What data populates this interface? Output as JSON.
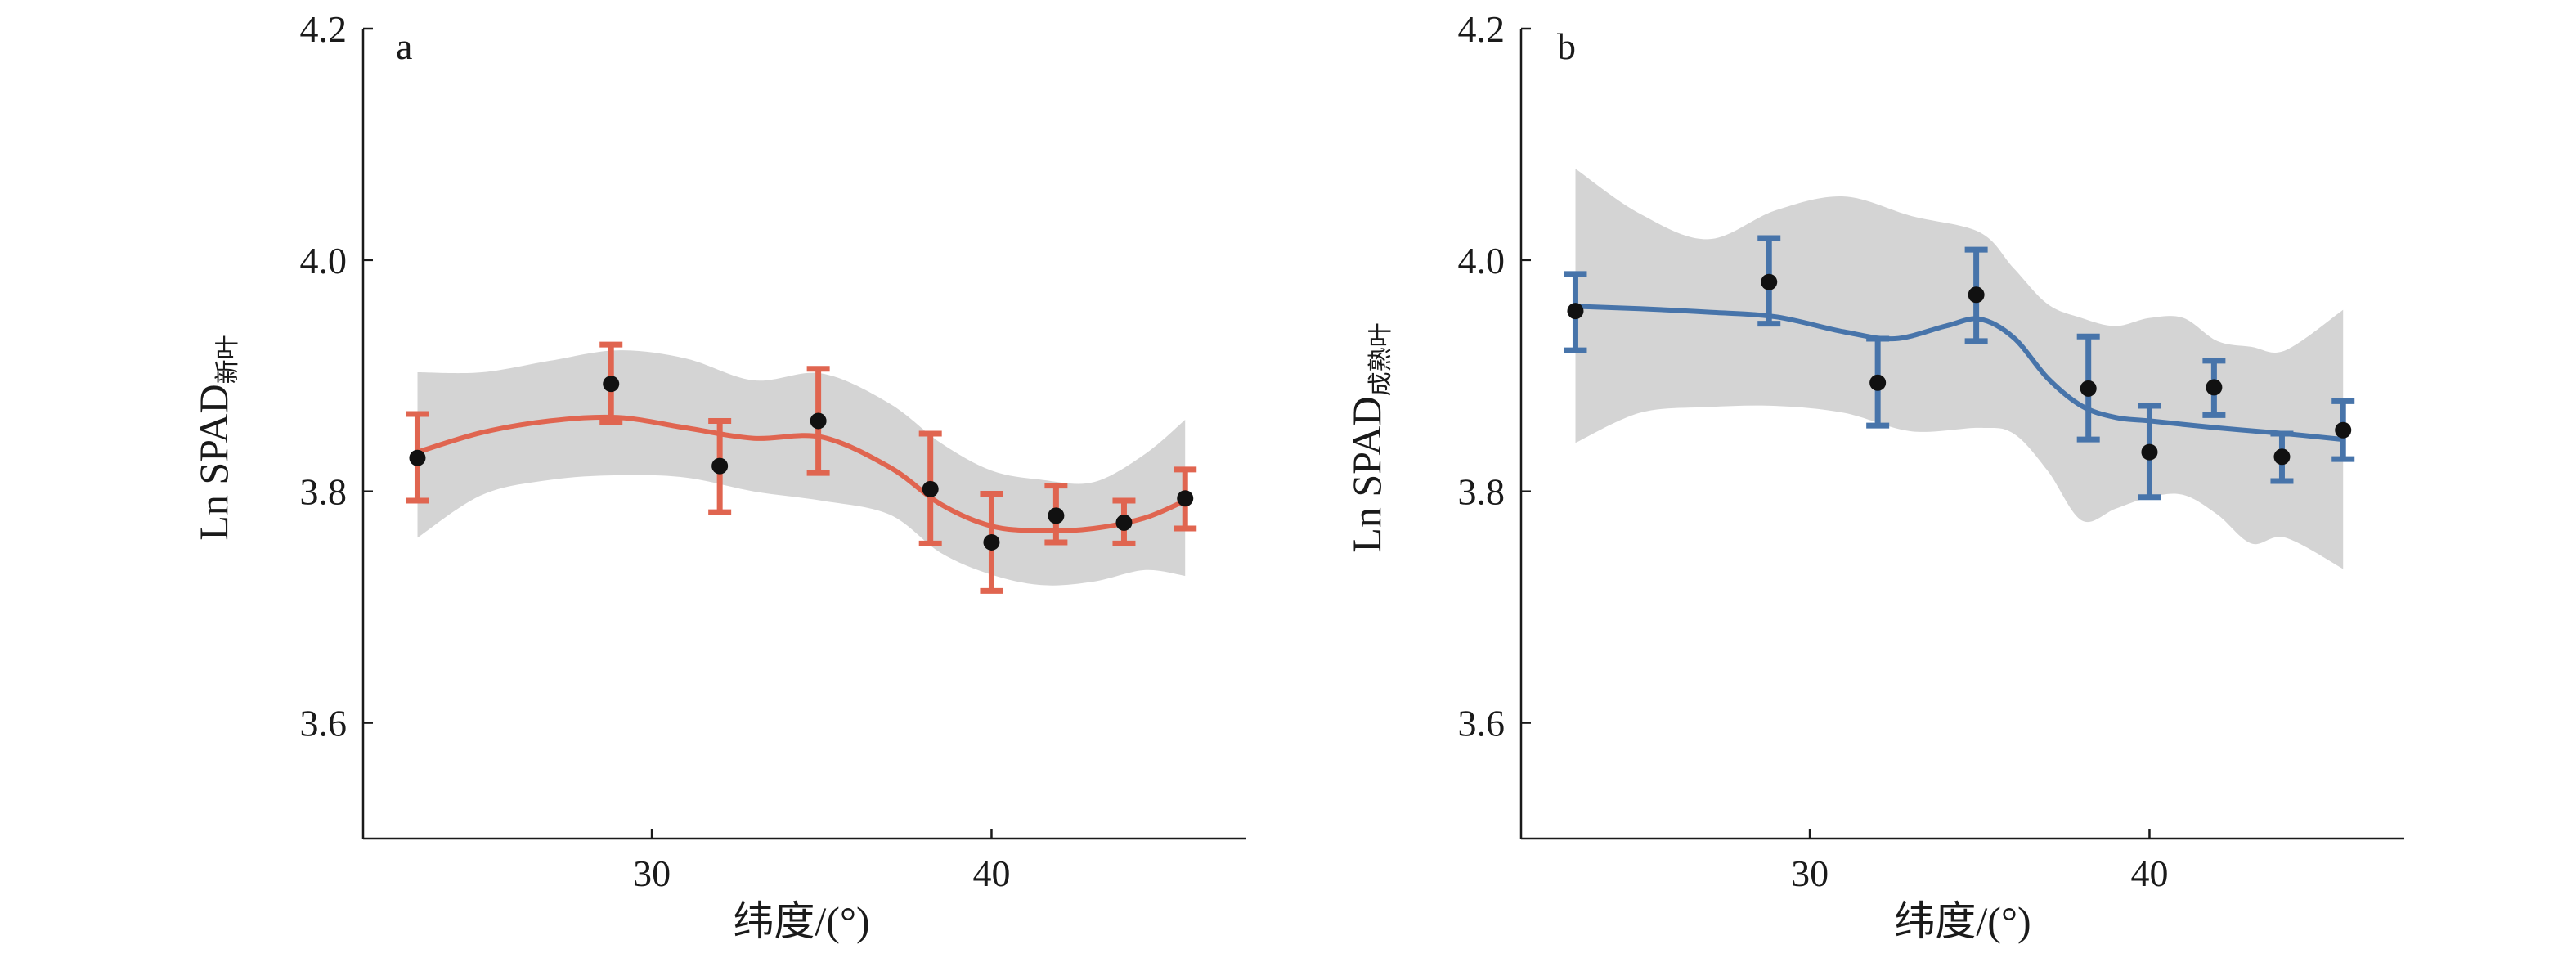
{
  "colors": {
    "panel_a": "#e06550",
    "panel_b": "#4774aa",
    "band": "#d4d4d4",
    "points": "#111111"
  },
  "chart_data": [
    {
      "type": "scatter",
      "panel_label": "a",
      "xlabel": "纬度/(°)",
      "ylabel_main": "Ln SPAD",
      "ylabel_sub": "新叶",
      "xlim": [
        21.5,
        47.5
      ],
      "ylim": [
        3.5,
        4.2
      ],
      "xticks": [
        30,
        40
      ],
      "yticks": [
        3.6,
        3.8,
        4.0,
        4.2
      ],
      "ytick_labels": [
        "3.6",
        "3.8",
        "4.0",
        "4.2"
      ],
      "xtick_labels": [
        "30",
        "40"
      ],
      "points": {
        "x": [
          23.1,
          28.8,
          32.0,
          34.9,
          38.2,
          40.0,
          41.9,
          43.9,
          45.7
        ],
        "y": [
          3.829,
          3.893,
          3.822,
          3.861,
          3.802,
          3.756,
          3.779,
          3.773,
          3.794
        ],
        "err_low": [
          3.792,
          3.86,
          3.782,
          3.816,
          3.755,
          3.714,
          3.756,
          3.755,
          3.768
        ],
        "err_high": [
          3.867,
          3.927,
          3.861,
          3.906,
          3.85,
          3.798,
          3.805,
          3.792,
          3.819
        ]
      },
      "fit": {
        "x": [
          23.1,
          25,
          27,
          29,
          31,
          33,
          35,
          37,
          38.5,
          40,
          41.5,
          43,
          44.5,
          45.7
        ],
        "y": [
          3.834,
          3.851,
          3.861,
          3.864,
          3.855,
          3.846,
          3.847,
          3.821,
          3.789,
          3.77,
          3.766,
          3.768,
          3.777,
          3.792
        ]
      },
      "band": {
        "x": [
          23.1,
          25,
          27,
          29,
          31,
          33,
          35,
          37,
          38.5,
          40,
          41.5,
          43,
          44.5,
          45.7
        ],
        "upper": [
          3.903,
          3.903,
          3.913,
          3.922,
          3.915,
          3.896,
          3.902,
          3.876,
          3.842,
          3.818,
          3.81,
          3.808,
          3.832,
          3.862
        ],
        "lower": [
          3.76,
          3.797,
          3.81,
          3.814,
          3.812,
          3.8,
          3.792,
          3.78,
          3.747,
          3.728,
          3.719,
          3.722,
          3.732,
          3.727
        ]
      }
    },
    {
      "type": "scatter",
      "panel_label": "b",
      "xlabel": "纬度/(°)",
      "ylabel_main": "Ln SPAD",
      "ylabel_sub": "成熟叶",
      "xlim": [
        21.5,
        47.5
      ],
      "ylim": [
        3.5,
        4.2
      ],
      "xticks": [
        30,
        40
      ],
      "yticks": [
        3.6,
        3.8,
        4.0,
        4.2
      ],
      "ytick_labels": [
        "3.6",
        "3.8",
        "4.0",
        "4.2"
      ],
      "xtick_labels": [
        "30",
        "40"
      ],
      "points": {
        "x": [
          23.1,
          28.8,
          32.0,
          34.9,
          38.2,
          40.0,
          41.9,
          43.9,
          45.7
        ],
        "y": [
          3.956,
          3.981,
          3.894,
          3.97,
          3.889,
          3.834,
          3.89,
          3.83,
          3.853
        ],
        "err_low": [
          3.922,
          3.945,
          3.857,
          3.93,
          3.845,
          3.795,
          3.866,
          3.809,
          3.828
        ],
        "err_high": [
          3.988,
          4.019,
          3.932,
          4.009,
          3.934,
          3.874,
          3.913,
          3.85,
          3.878
        ]
      },
      "fit": {
        "x": [
          23.1,
          25,
          27,
          29,
          31,
          32.5,
          34,
          35,
          36,
          37,
          38,
          39,
          40,
          42,
          44,
          45.7
        ],
        "y": [
          3.96,
          3.958,
          3.955,
          3.951,
          3.938,
          3.932,
          3.943,
          3.949,
          3.933,
          3.898,
          3.874,
          3.864,
          3.861,
          3.855,
          3.85,
          3.845
        ]
      },
      "band": {
        "x": [
          23.1,
          25,
          27,
          29,
          31,
          33,
          35,
          36,
          37,
          38,
          39,
          40,
          41,
          42,
          43,
          44,
          45.7
        ],
        "upper": [
          4.079,
          4.04,
          4.018,
          4.043,
          4.055,
          4.038,
          4.024,
          3.993,
          3.962,
          3.95,
          3.943,
          3.95,
          3.95,
          3.93,
          3.925,
          3.922,
          3.957
        ],
        "lower": [
          3.842,
          3.868,
          3.873,
          3.874,
          3.868,
          3.852,
          3.855,
          3.85,
          3.818,
          3.775,
          3.785,
          3.795,
          3.797,
          3.78,
          3.755,
          3.76,
          3.733
        ]
      }
    }
  ]
}
